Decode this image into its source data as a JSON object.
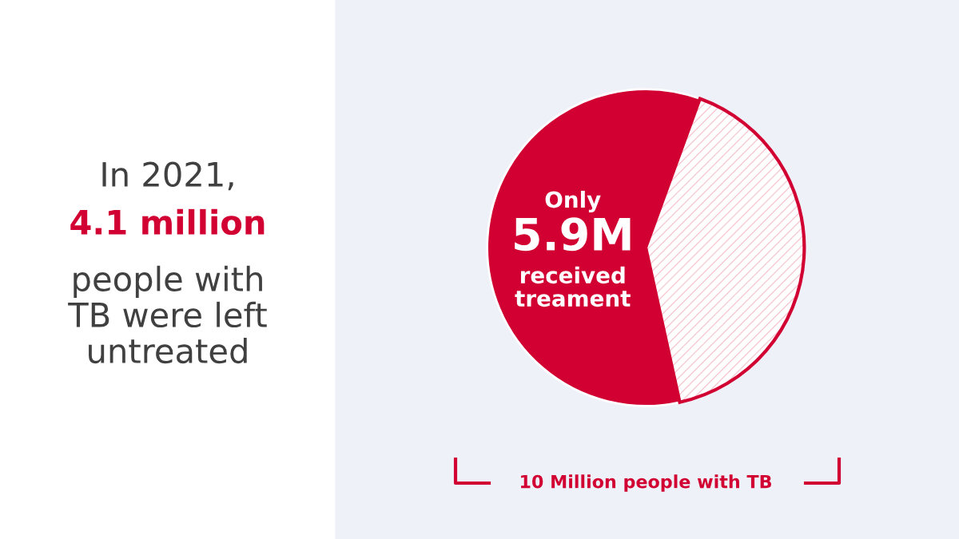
{
  "chart_data": {
    "type": "pie",
    "categories": [
      null,
      null
    ],
    "values": [
      5.9,
      4.1
    ],
    "colors": [
      "#d20032",
      "#ffffff"
    ],
    "value_labels": [
      "5.9M",
      null
    ],
    "annotations": [
      "In 2021,",
      "4.1 million",
      "people with\nTB were left\nuntreated",
      "Only",
      "received\ntreament",
      "10 Million people with TB"
    ]
  }
}
